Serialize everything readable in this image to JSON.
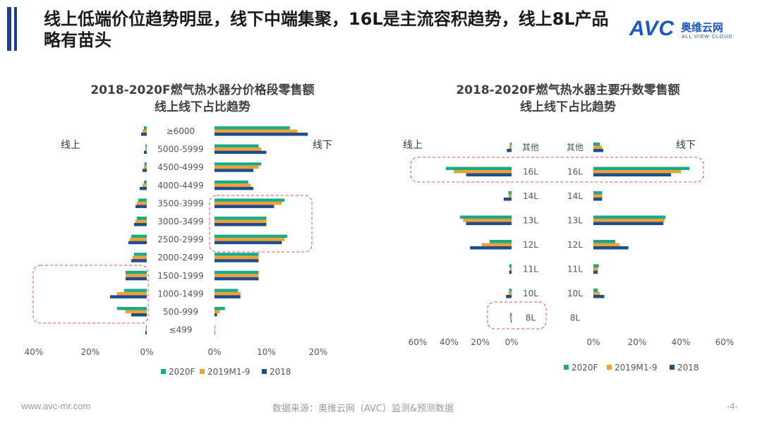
{
  "header": {
    "title": "线上低端价位趋势明显，线下中端集聚，16L是主流容积趋势，线上8L产品略有苗头"
  },
  "logo": {
    "main": "AVC",
    "cn": "奥维云网",
    "en": "ALL VIEW CLOUD"
  },
  "footer": {
    "url": "www.avc-mr.com",
    "source": "数据来源：奥维云网（AVC）监测&预测数据",
    "page": "-4-"
  },
  "colors": {
    "s2020F": "#1aaa8a",
    "s2019": "#f2a130",
    "s2018": "#1f4e8f",
    "highlight": "#e05050"
  },
  "chart_data": [
    {
      "type": "bar",
      "orientation": "horizontal-butterfly",
      "title": "2018-2020F燃气热水器分价格段零售额",
      "subtitle": "线上线下占比趋势",
      "left_label": "线上",
      "right_label": "线下",
      "categories": [
        "≥6000",
        "5000-5999",
        "4500-4999",
        "4000-4499",
        "3500-3999",
        "3000-3499",
        "2500-2999",
        "2000-2499",
        "1500-1999",
        "1000-1499",
        "500-999",
        "≤499"
      ],
      "series_names": [
        "2020F",
        "2019M1-9",
        "2018"
      ],
      "online": {
        "2020F": [
          1.0,
          0.5,
          0.8,
          1.0,
          3.0,
          3.5,
          5.5,
          4.5,
          7.5,
          8.0,
          10.5,
          0.3
        ],
        "2019M1-9": [
          1.5,
          0.5,
          1.0,
          1.5,
          3.5,
          4.0,
          6.0,
          5.0,
          7.5,
          10.5,
          7.5,
          0.4
        ],
        "2018": [
          2.0,
          1.0,
          1.5,
          2.5,
          4.0,
          4.5,
          6.5,
          5.5,
          7.5,
          13.0,
          5.5,
          0.5
        ]
      },
      "offline": {
        "2020F": [
          14.5,
          8.5,
          9.0,
          6.5,
          13.5,
          10.0,
          14.0,
          8.5,
          8.5,
          4.5,
          2.0,
          0.1
        ],
        "2019M1-9": [
          16.0,
          9.0,
          8.5,
          7.0,
          13.0,
          10.0,
          13.5,
          8.5,
          8.5,
          5.0,
          1.0,
          0.1
        ],
        "2018": [
          18.0,
          10.0,
          7.5,
          7.5,
          11.5,
          10.0,
          13.0,
          8.5,
          8.5,
          5.0,
          0.5,
          0.1
        ]
      },
      "online_axis": {
        "ticks": [
          "40%",
          "20%",
          "0%"
        ],
        "range": [
          0,
          40
        ]
      },
      "offline_axis": {
        "ticks": [
          "0%",
          "10%",
          "20%"
        ],
        "range": [
          0,
          20
        ]
      },
      "highlights": [
        "offline:3500-3999..2500-2999",
        "online:1500-1999..500-999"
      ],
      "legend": [
        "2020F",
        "2019M1-9",
        "2018"
      ]
    },
    {
      "type": "bar",
      "orientation": "horizontal-butterfly",
      "title": "2018-2020F燃气热水器主要升数零售额",
      "subtitle": "线上线下占比趋势",
      "left_label": "线上",
      "right_label": "线下",
      "categories": [
        "其他",
        "16L",
        "14L",
        "13L",
        "12L",
        "11L",
        "10L",
        "8L"
      ],
      "series_names": [
        "2020F",
        "2019M1-9",
        "2018"
      ],
      "online": {
        "2020F": [
          1.0,
          42.0,
          2.0,
          33.0,
          14.0,
          1.5,
          1.5,
          1.0
        ],
        "2019M1-9": [
          1.5,
          37.0,
          2.0,
          31.0,
          19.0,
          1.0,
          2.0,
          1.0
        ],
        "2018": [
          3.0,
          29.0,
          5.0,
          29.0,
          26.5,
          1.5,
          3.5,
          0.5
        ]
      },
      "offline": {
        "2020F": [
          3.0,
          44.0,
          4.0,
          33.0,
          10.0,
          2.5,
          2.0,
          0.0
        ],
        "2019M1-9": [
          4.0,
          40.0,
          4.0,
          32.5,
          12.0,
          2.0,
          3.0,
          0.0
        ],
        "2018": [
          4.5,
          35.5,
          4.0,
          32.0,
          16.0,
          2.0,
          5.0,
          0.0
        ]
      },
      "online_axis": {
        "ticks": [
          "60%",
          "40%",
          "20%",
          "0%"
        ],
        "range": [
          0,
          60
        ]
      },
      "offline_axis": {
        "ticks": [
          "0%",
          "20%",
          "40%",
          "60%"
        ],
        "range": [
          0,
          60
        ]
      },
      "highlights": [
        "both:16L",
        "online:8L"
      ],
      "legend": [
        "2020F",
        "2019M1-9",
        "2018"
      ]
    }
  ]
}
